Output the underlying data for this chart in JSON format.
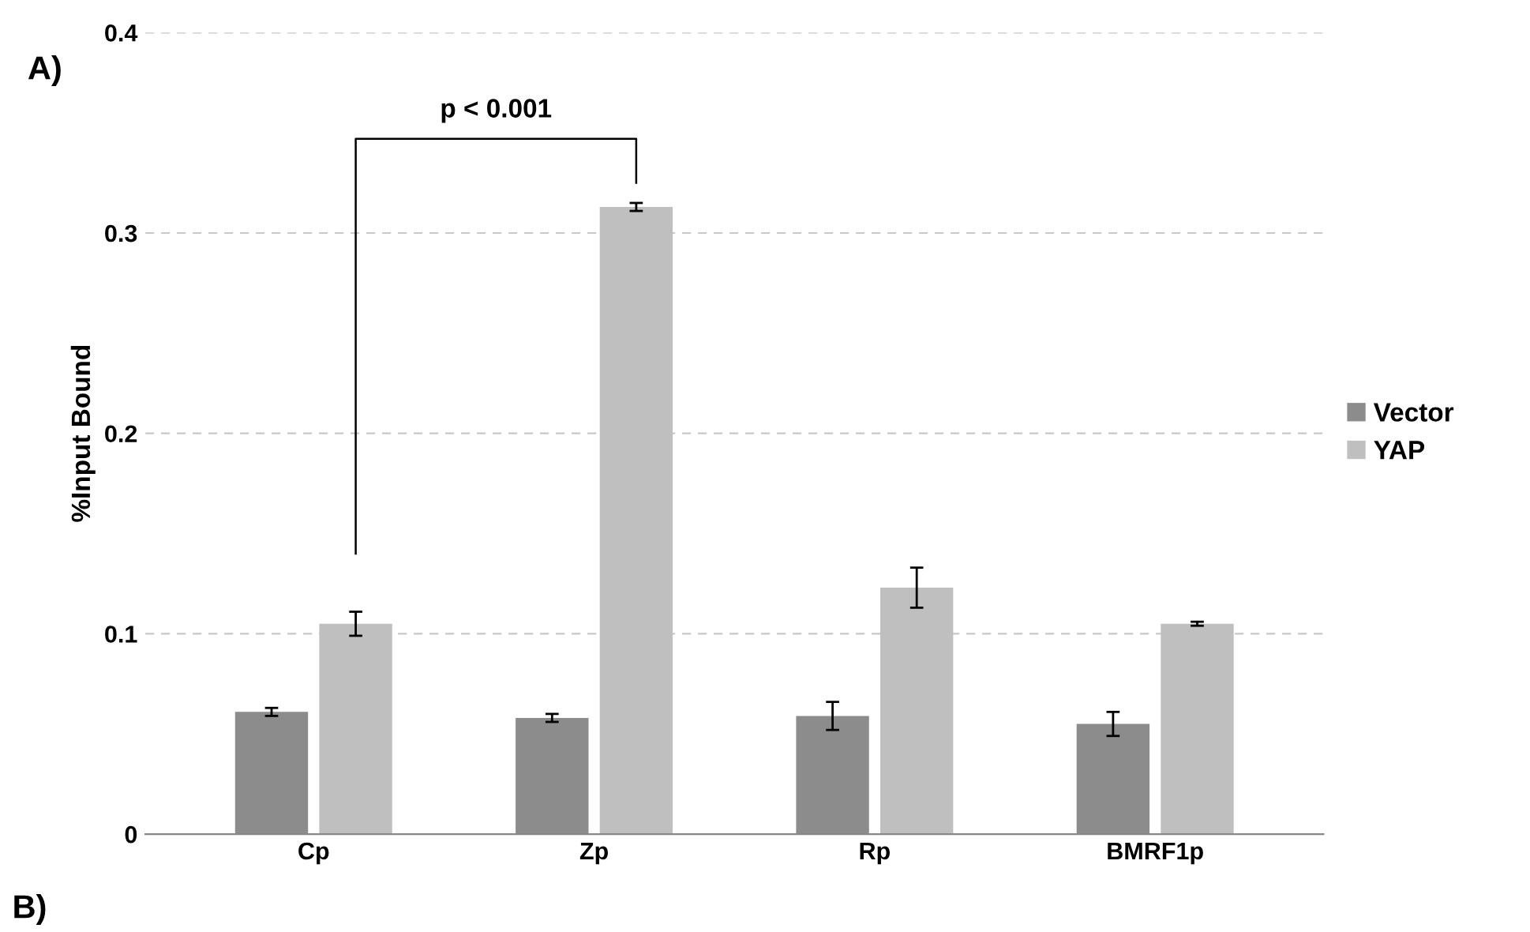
{
  "chart_data": {
    "type": "bar",
    "ylabel": "%Input Bound",
    "categories": [
      "Cp",
      "Zp",
      "Rp",
      "BMRF1p"
    ],
    "series": [
      {
        "name": "Vector",
        "color": "#8c8c8c",
        "values": [
          0.061,
          0.058,
          0.059,
          0.055
        ],
        "errors": [
          0.002,
          0.002,
          0.007,
          0.006
        ]
      },
      {
        "name": "YAP",
        "color": "#bfbfbf",
        "values": [
          0.105,
          0.313,
          0.123,
          0.105
        ],
        "errors": [
          0.006,
          0.002,
          0.01,
          0.001
        ]
      }
    ],
    "ylim": [
      0,
      0.4
    ],
    "yticks": [
      0,
      0.1,
      0.2,
      0.3,
      0.4
    ],
    "grid": "y",
    "legend": "right",
    "annotations": [
      "A)",
      "p < 0.001",
      "B)"
    ]
  }
}
